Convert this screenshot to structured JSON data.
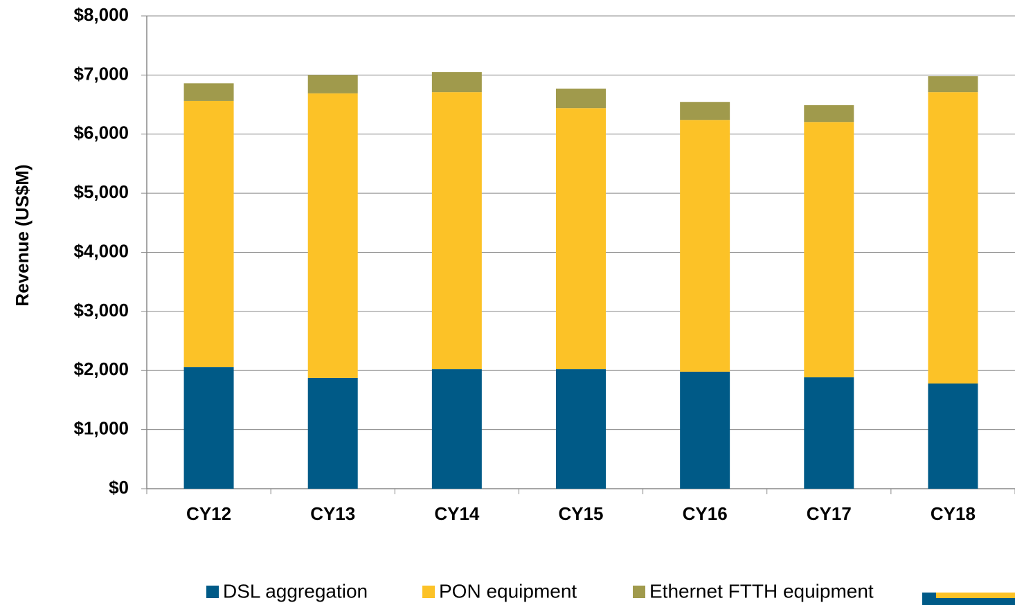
{
  "chart_data": {
    "type": "bar",
    "stacked": true,
    "y_label": "Revenue (US$M)",
    "categories": [
      "CY12",
      "CY13",
      "CY14",
      "CY15",
      "CY16",
      "CY17",
      "CY18"
    ],
    "series": [
      {
        "name": "DSL aggregation",
        "color": "#005a87",
        "values": [
          2060,
          1875,
          2025,
          2025,
          1980,
          1885,
          1780
        ]
      },
      {
        "name": "PON equipment",
        "color": "#fcc227",
        "values": [
          4500,
          4815,
          4685,
          4415,
          4260,
          4320,
          4930
        ]
      },
      {
        "name": "Ethernet FTTH equipment",
        "color": "#a09a4c",
        "values": [
          300,
          310,
          340,
          330,
          305,
          285,
          270
        ]
      }
    ],
    "ylim": [
      0,
      8000
    ],
    "yticks": [
      {
        "value": 0,
        "label": "$0"
      },
      {
        "value": 1000,
        "label": "$1,000"
      },
      {
        "value": 2000,
        "label": "$2,000"
      },
      {
        "value": 3000,
        "label": "$3,000"
      },
      {
        "value": 4000,
        "label": "$4,000"
      },
      {
        "value": 5000,
        "label": "$5,000"
      },
      {
        "value": 6000,
        "label": "$6,000"
      },
      {
        "value": 7000,
        "label": "$7,000"
      },
      {
        "value": 8000,
        "label": "$8,000"
      }
    ],
    "grid": true,
    "legend": "bottom"
  }
}
